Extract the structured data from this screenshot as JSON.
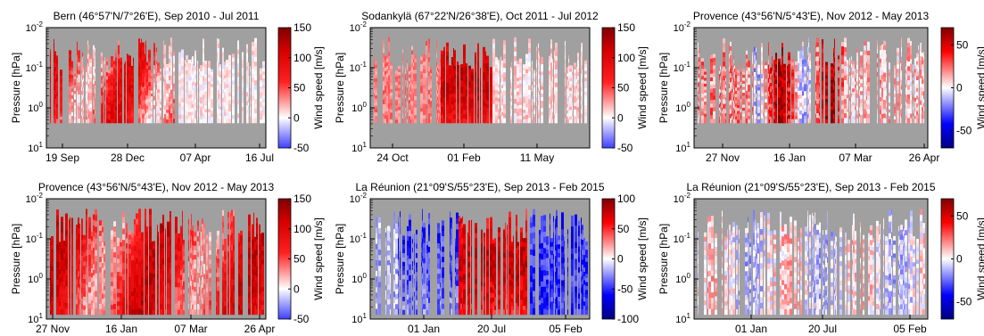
{
  "chart_data": [
    {
      "type": "heatmap",
      "title": "Bern (46°57'N/7°26'E), Sep 2010 - Jul 2011",
      "ylabel": "Pressure [hPa]",
      "yscale": "log",
      "ylim": [
        10,
        0.01
      ],
      "yticks": [
        "10^-2",
        "10^-1",
        "10^0",
        "10^1"
      ],
      "xticks": [
        "19 Sep",
        "28 Dec",
        "07 Apr",
        "16 Jul"
      ],
      "colorbar": {
        "label": "Wind speed [m/s]",
        "range": [
          -50,
          150
        ],
        "ticks": [
          150,
          100,
          50,
          0,
          -50
        ]
      },
      "colormap": "blue-white-red",
      "background_color": "#a0a0a0"
    },
    {
      "type": "heatmap",
      "title": "Sodankylä (67°22'N/26°38'E), Oct 2011 - Jul 2012",
      "ylabel": "Pressure [hPa]",
      "yscale": "log",
      "ylim": [
        10,
        0.01
      ],
      "yticks": [
        "10^-2",
        "10^-1",
        "10^0",
        "10^1"
      ],
      "xticks": [
        "24 Oct",
        "01 Feb",
        "11 May"
      ],
      "colorbar": {
        "label": "Wind speed [m/s]",
        "range": [
          -50,
          150
        ],
        "ticks": [
          150,
          100,
          50,
          0,
          -50
        ]
      },
      "colormap": "blue-white-red",
      "background_color": "#a0a0a0"
    },
    {
      "type": "heatmap",
      "title": "Provence (43°56'N/5°43'E), Nov 2012 - May 2013",
      "ylabel": "Pressure [hPa]",
      "yscale": "log",
      "ylim": [
        10,
        0.01
      ],
      "yticks": [
        "10^-2",
        "10^-1",
        "10^0",
        "10^1"
      ],
      "xticks": [
        "27 Nov",
        "16 Jan",
        "07 Mar",
        "26 Apr"
      ],
      "colorbar": {
        "label": "Wind speed [m/s]",
        "range": [
          -70,
          70
        ],
        "ticks": [
          50,
          0,
          -50
        ]
      },
      "colormap": "blue-white-red",
      "background_color": "#a0a0a0"
    },
    {
      "type": "heatmap",
      "title": "Provence (43°56'N/5°43'E), Nov 2012 - May 2013",
      "ylabel": "Pressure [hPa]",
      "yscale": "log",
      "ylim": [
        10,
        0.01
      ],
      "yticks": [
        "10^-2",
        "10^-1",
        "10^0",
        "10^1"
      ],
      "xticks": [
        "27 Nov",
        "16 Jan",
        "07 Mar",
        "26 Apr"
      ],
      "colorbar": {
        "label": "Wind speed [m/s]",
        "range": [
          -50,
          150
        ],
        "ticks": [
          150,
          100,
          50,
          0,
          -50
        ]
      },
      "colormap": "blue-white-red",
      "background_color": "#a0a0a0"
    },
    {
      "type": "heatmap",
      "title": "La Réunion (21°09'S/55°23'E), Sep 2013 - Feb 2015",
      "ylabel": "Pressure [hPa]",
      "yscale": "log",
      "ylim": [
        10,
        0.01
      ],
      "yticks": [
        "10^-2",
        "10^-1",
        "10^0",
        "10^1"
      ],
      "xticks": [
        "01 Jan",
        "20 Jul",
        "05 Feb"
      ],
      "colorbar": {
        "label": "Wind speed [m/s]",
        "range": [
          -100,
          100
        ],
        "ticks": [
          100,
          50,
          0,
          -50,
          -100
        ]
      },
      "colormap": "blue-white-red",
      "background_color": "#a0a0a0"
    },
    {
      "type": "heatmap",
      "title": "La Réunion (21°09'S/55°23'E), Sep 2013 - Feb 2015",
      "ylabel": "Pressure [hPa]",
      "yscale": "log",
      "ylim": [
        10,
        0.01
      ],
      "yticks": [
        "10^-2",
        "10^-1",
        "10^0",
        "10^1"
      ],
      "xticks": [
        "01 Jan",
        "20 Jul",
        "05 Feb"
      ],
      "colorbar": {
        "label": "Wind speed [m/s]",
        "range": [
          -70,
          70
        ],
        "ticks": [
          50,
          0,
          -50
        ]
      },
      "colormap": "blue-white-red",
      "background_color": "#a0a0a0"
    }
  ]
}
